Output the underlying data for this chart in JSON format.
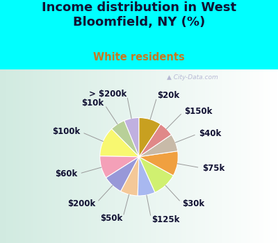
{
  "title": "Income distribution in West\nBloomfield, NY (%)",
  "subtitle": "White residents",
  "title_color": "#111133",
  "subtitle_color": "#c87820",
  "background_color": "#00ffff",
  "watermark": "▲ City-Data.com",
  "labels": [
    "> $200k",
    "$10k",
    "$100k",
    "$60k",
    "$200k",
    "$50k",
    "$125k",
    "$30k",
    "$75k",
    "$40k",
    "$150k",
    "$20k"
  ],
  "values": [
    6,
    6,
    12,
    9,
    8,
    7,
    7,
    10,
    10,
    7,
    6,
    9
  ],
  "colors": [
    "#c0b0e0",
    "#b8d098",
    "#f8f870",
    "#f4a0b8",
    "#9898d8",
    "#f4c898",
    "#a8b8f0",
    "#d0f070",
    "#f0a040",
    "#c8baa8",
    "#e08888",
    "#c8a020"
  ],
  "label_fontsize": 8.5,
  "title_fontsize": 13,
  "subtitle_fontsize": 10.5,
  "startangle": 90
}
